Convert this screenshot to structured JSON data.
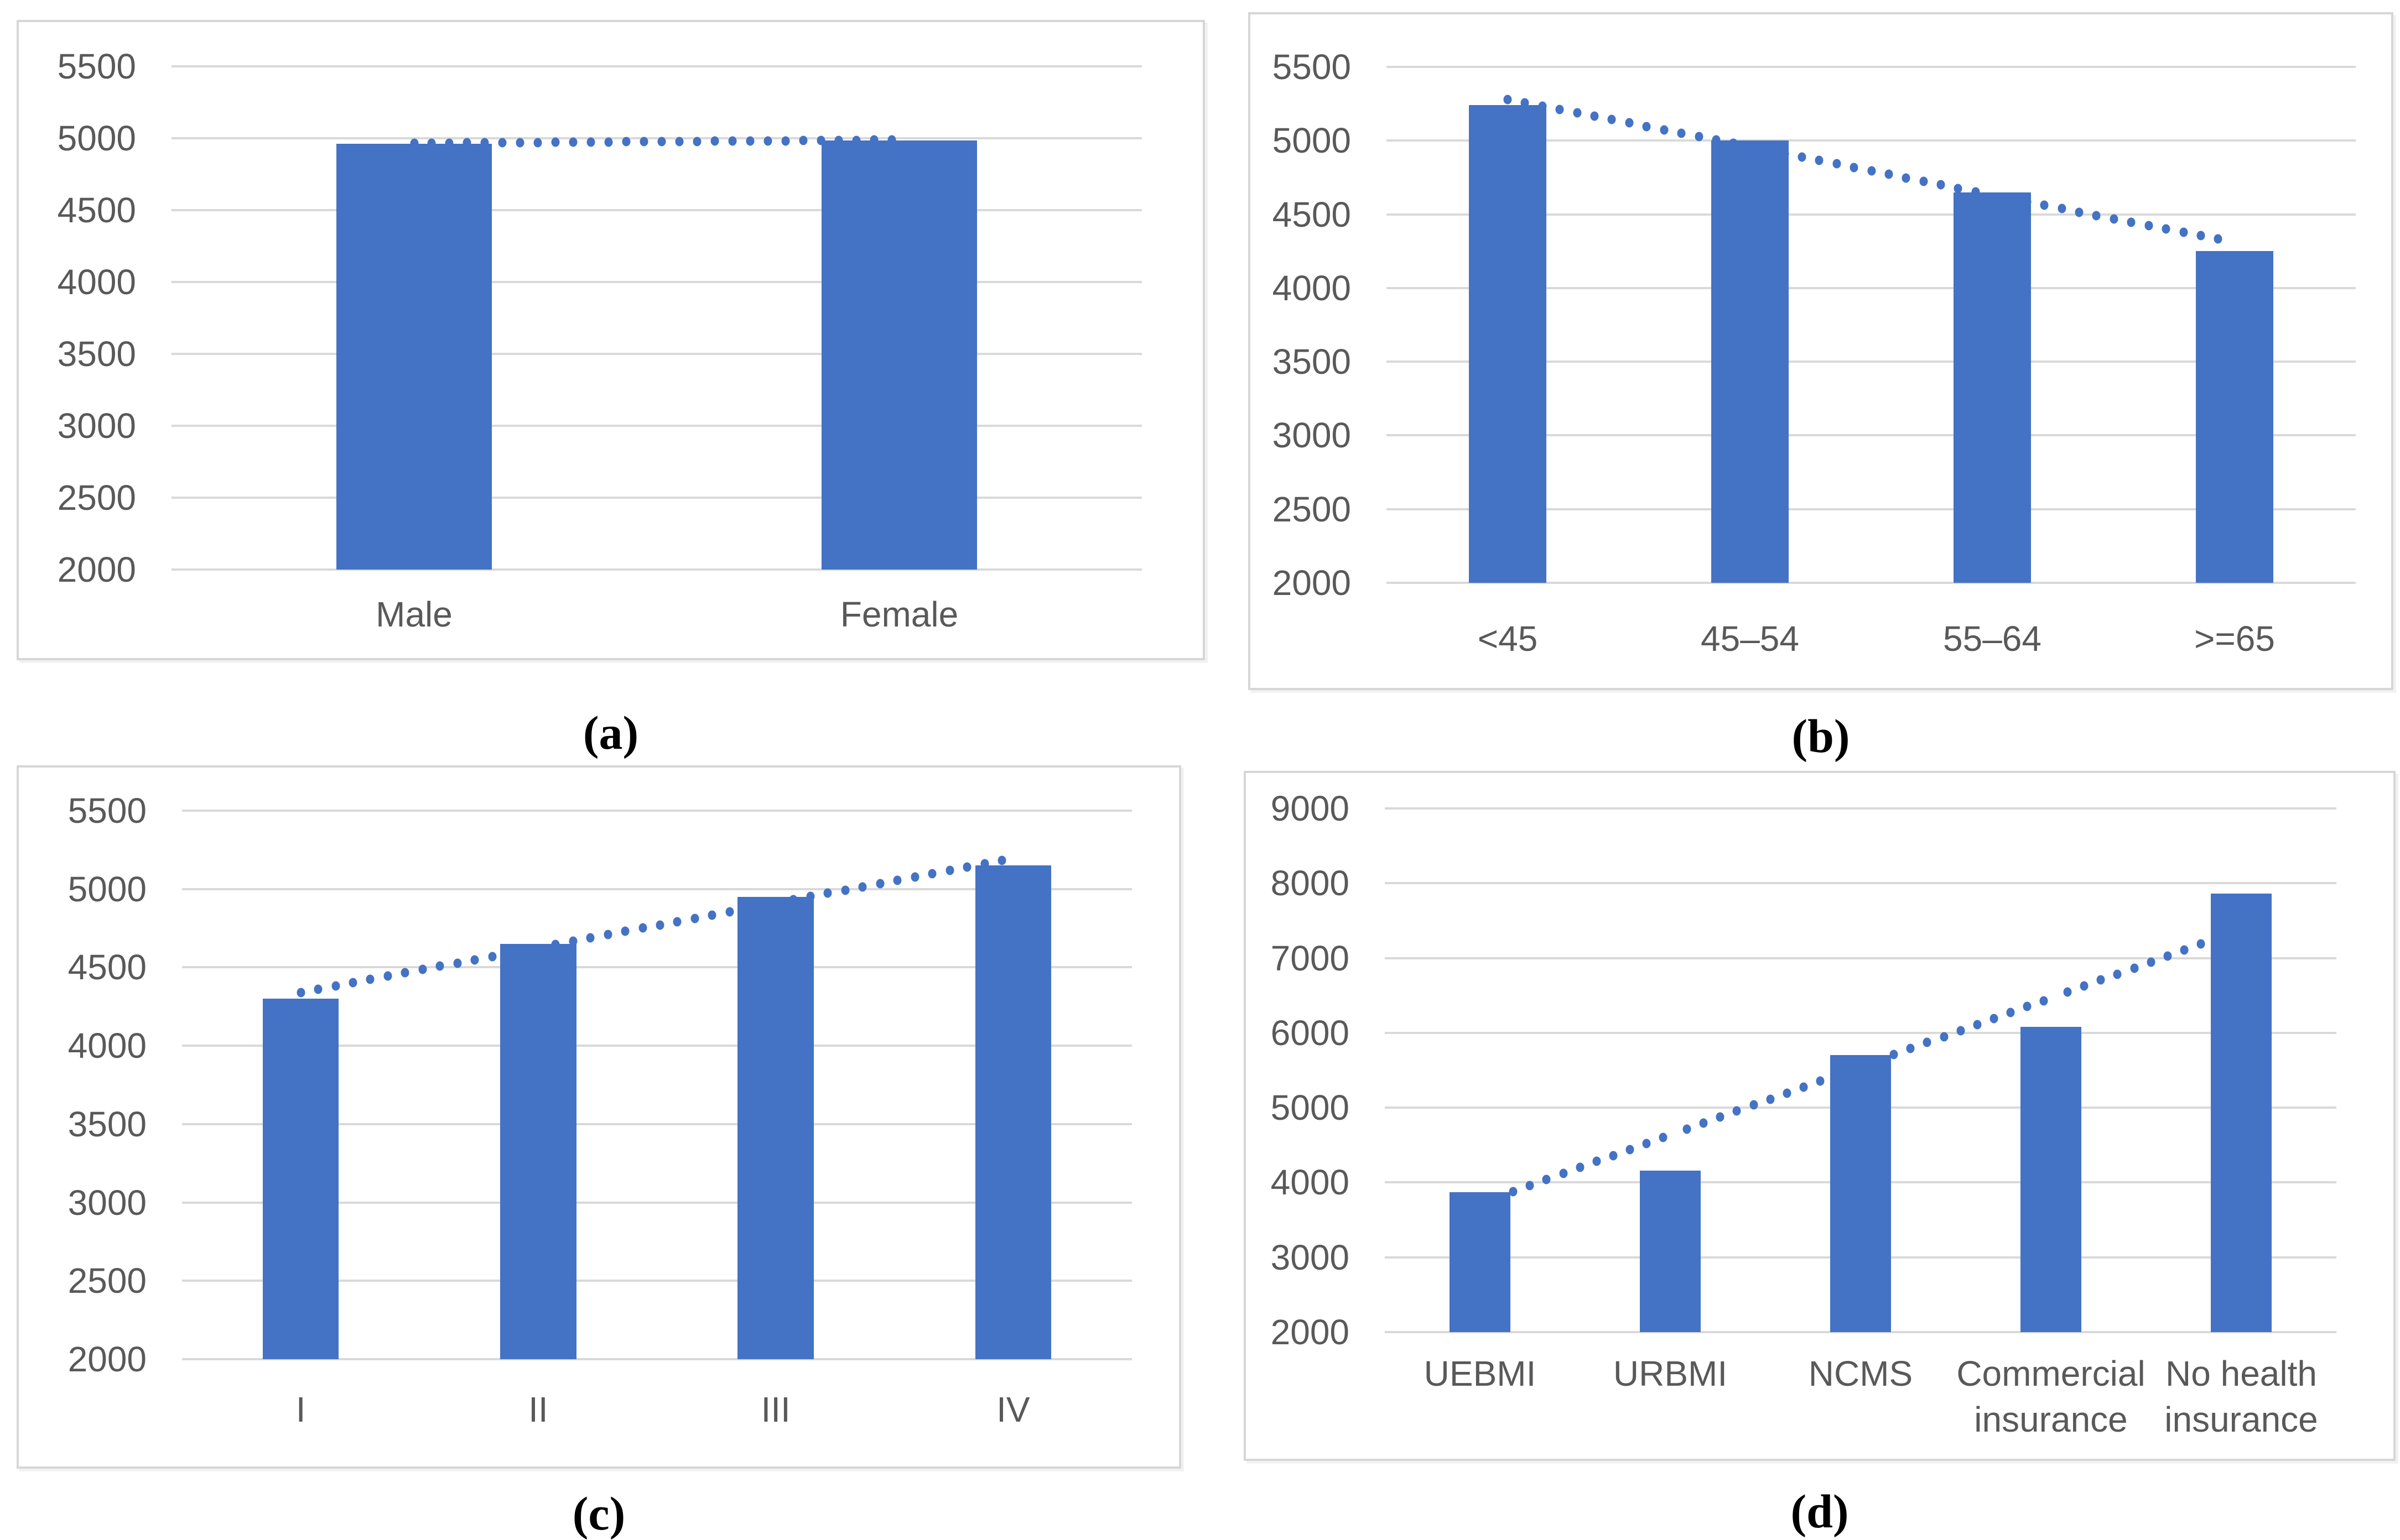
{
  "figure": {
    "captions": {
      "a": "(a)",
      "b": "(b)",
      "c": "(c)",
      "d": "(d)"
    }
  },
  "colors": {
    "bar": "#4472C4",
    "trend_dot": "#4472C4",
    "gridline": "#D9D9D9",
    "axis_text": "#595959",
    "panel_border": "#D6D6D6",
    "caption_text": "#000000",
    "background": "#FFFFFF"
  },
  "chart_data": [
    {
      "id": "a",
      "type": "bar",
      "title": "",
      "caption": "(a)",
      "categories": [
        "Male",
        "Female"
      ],
      "values": [
        4960,
        4985
      ],
      "trendline": {
        "style": "dotted",
        "values": [
          4965,
          4988
        ]
      },
      "ylim": [
        2000,
        5500
      ],
      "yticks": [
        5500,
        5000,
        4500,
        4000,
        3500,
        3000,
        2500,
        2000
      ],
      "grid": true,
      "legend": "none"
    },
    {
      "id": "b",
      "type": "bar",
      "title": "",
      "caption": "(b)",
      "categories": [
        "<45",
        "45–54",
        "55–64",
        ">=65"
      ],
      "values": [
        5240,
        5000,
        4650,
        4250
      ],
      "trendline": {
        "style": "dotted",
        "values": [
          5280,
          4960,
          4630,
          4310
        ]
      },
      "ylim": [
        2000,
        5500
      ],
      "yticks": [
        5500,
        5000,
        4500,
        4000,
        3500,
        3000,
        2500,
        2000
      ],
      "grid": true,
      "legend": "none"
    },
    {
      "id": "c",
      "type": "bar",
      "title": "",
      "caption": "(c)",
      "categories": [
        "I",
        "II",
        "III",
        "IV"
      ],
      "values": [
        4300,
        4650,
        4950,
        5150
      ],
      "trendline": {
        "style": "dotted",
        "values": [
          4340,
          4625,
          4910,
          5195
        ]
      },
      "ylim": [
        2000,
        5500
      ],
      "yticks": [
        5500,
        5000,
        4500,
        4000,
        3500,
        3000,
        2500,
        2000
      ],
      "grid": true,
      "legend": "none"
    },
    {
      "id": "d",
      "type": "bar",
      "title": "",
      "caption": "(d)",
      "categories": [
        "UEBMI",
        "URBMI",
        "NCMS",
        "Commercial insurance",
        "No health insurance"
      ],
      "values": [
        3870,
        4160,
        5700,
        6080,
        7860
      ],
      "trendline": {
        "style": "dotted",
        "values": [
          3720,
          4635,
          5550,
          6465,
          7380
        ]
      },
      "ylim": [
        2000,
        9000
      ],
      "yticks": [
        9000,
        8000,
        7000,
        6000,
        5000,
        4000,
        3000,
        2000
      ],
      "grid": true,
      "legend": "none"
    }
  ]
}
